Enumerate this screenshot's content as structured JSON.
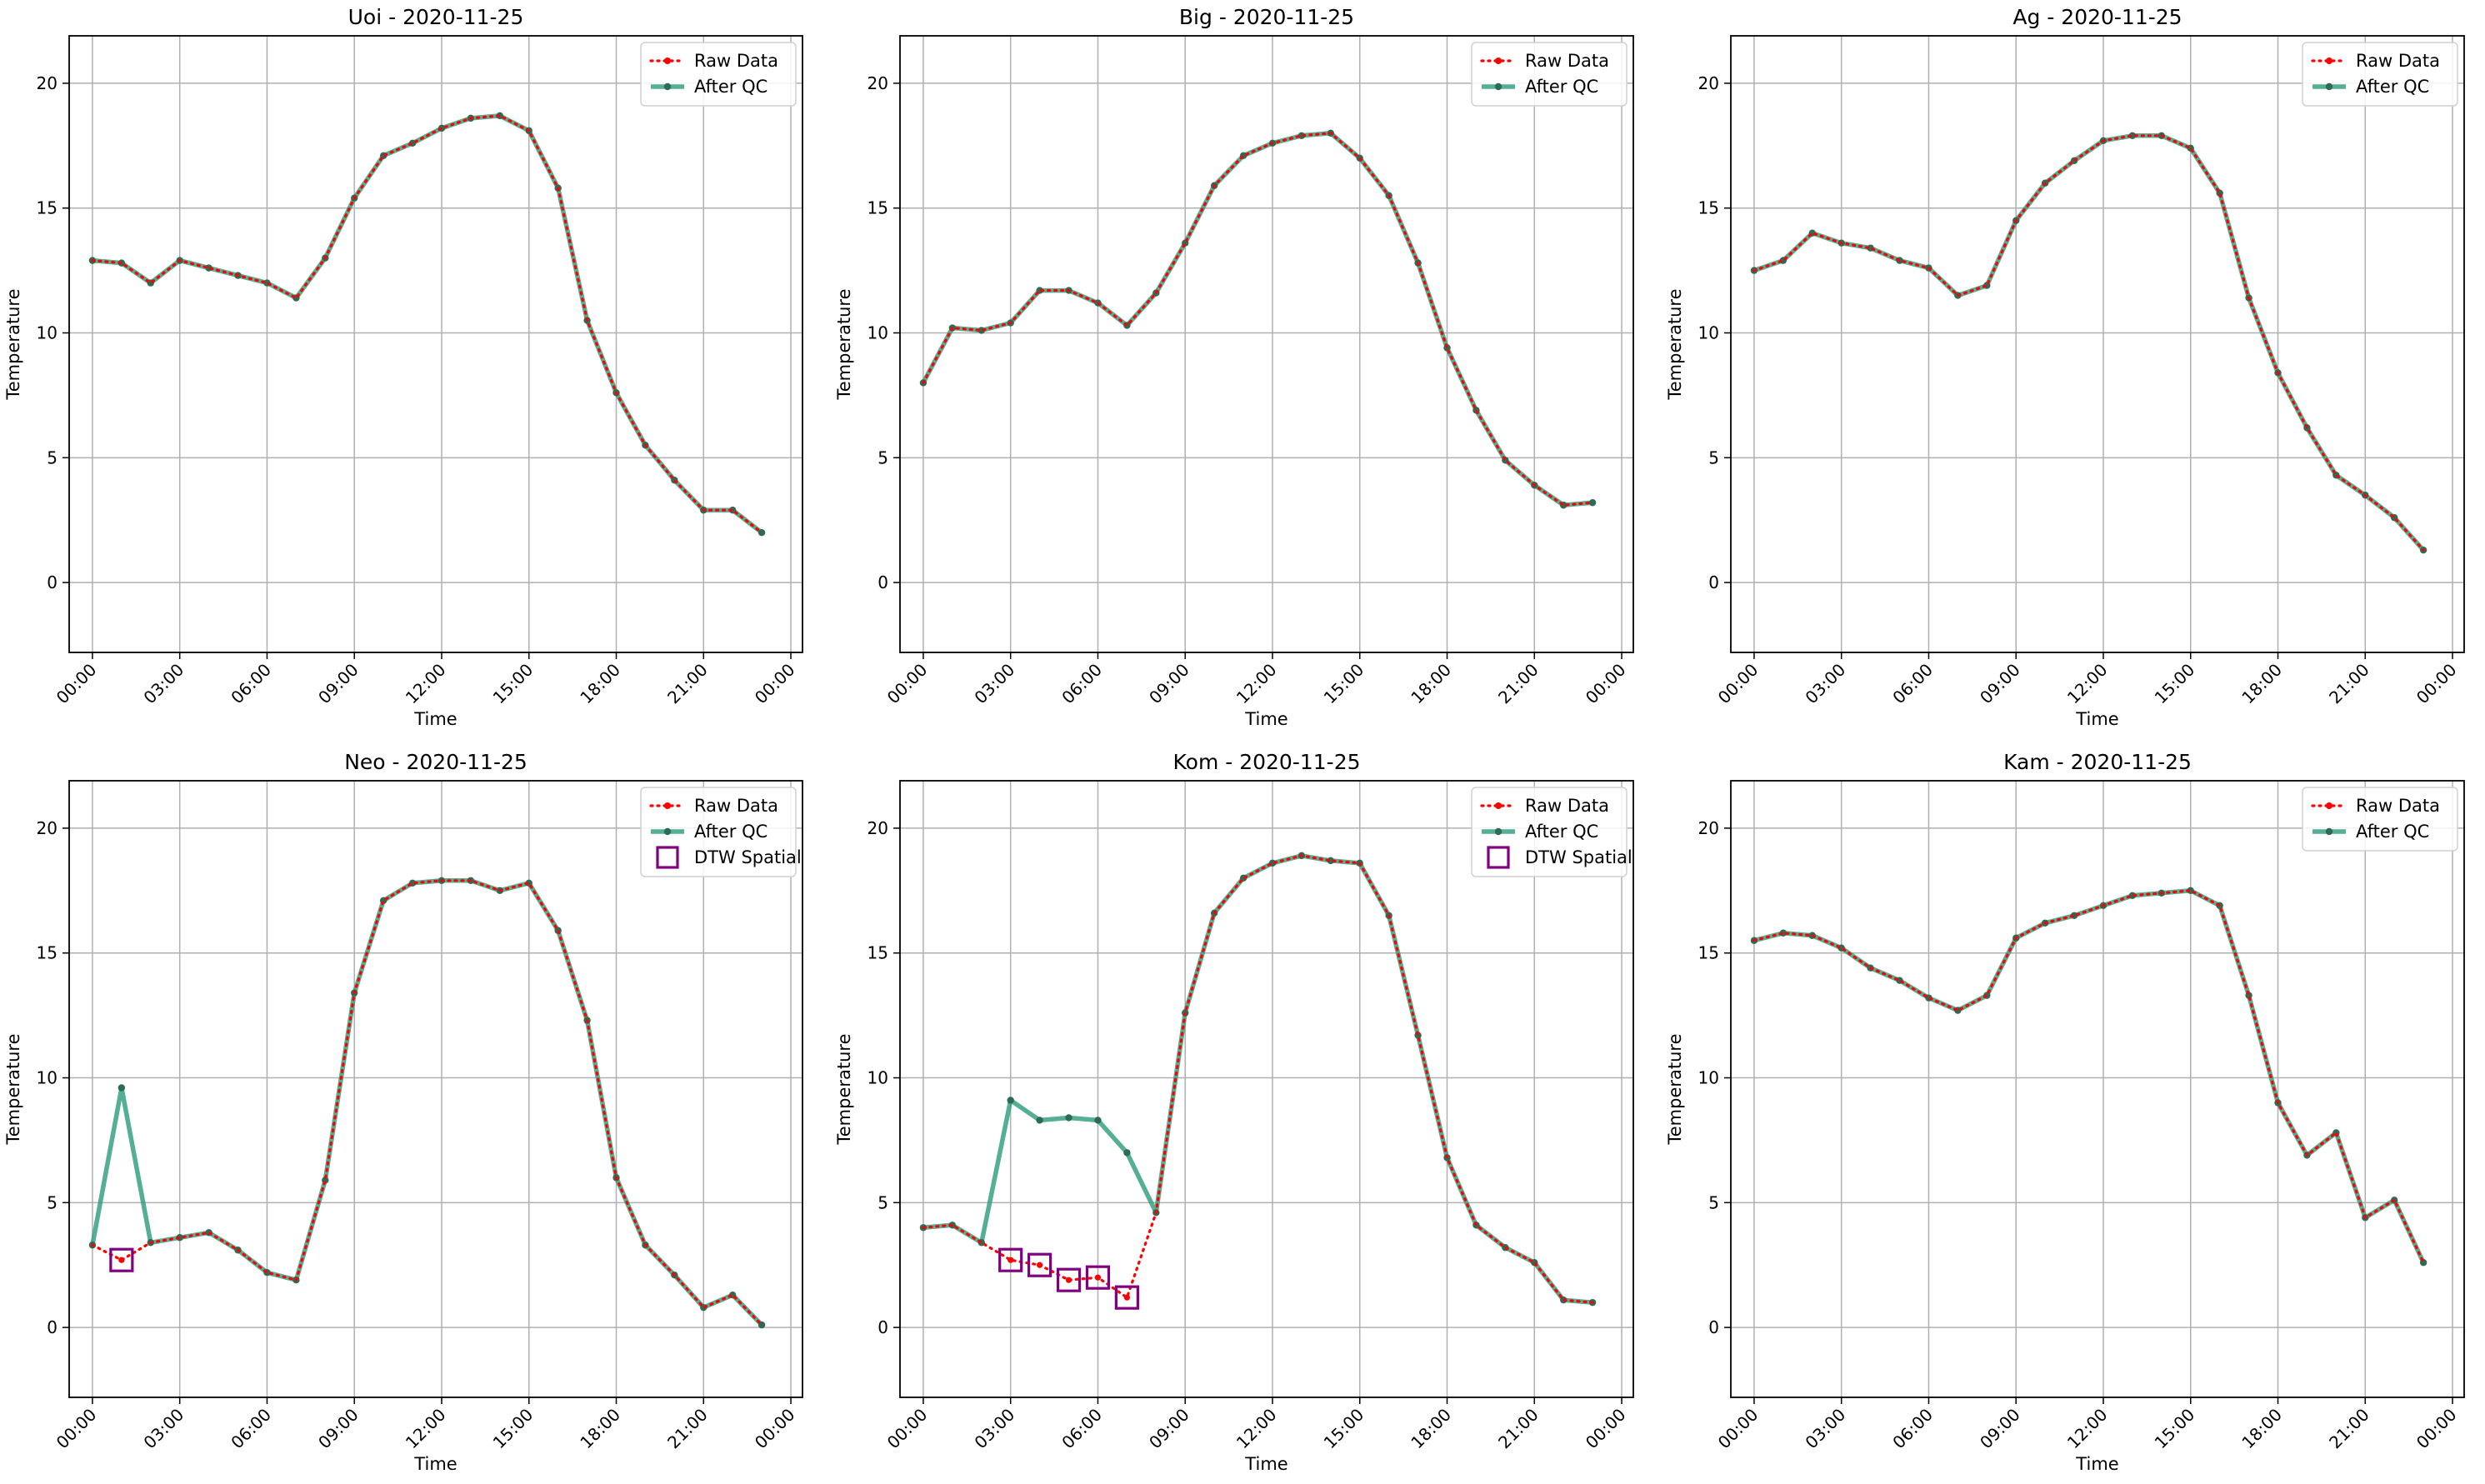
{
  "colors": {
    "raw": "#ff0000",
    "qc": "#2e9e7e",
    "qc_marker": "#2e6b57",
    "dtw": "#800080",
    "grid": "#b0b0b0",
    "axis": "#000000"
  },
  "chart_data": [
    {
      "type": "line",
      "title": "Uoi - 2020-11-25",
      "xlabel": "Time",
      "ylabel": "Temperature",
      "ylim": [
        -2.8,
        21.9
      ],
      "yticks": [
        "0",
        "5",
        "10",
        "15",
        "20"
      ],
      "xticks": [
        "00:00",
        "03:00",
        "06:00",
        "09:00",
        "12:00",
        "15:00",
        "18:00",
        "21:00",
        "00:00"
      ],
      "grid": true,
      "legend": {
        "placement": "top-right",
        "entries": [
          "Raw Data",
          "After QC"
        ]
      },
      "x": [
        "00:00",
        "01:00",
        "02:00",
        "03:00",
        "04:00",
        "05:00",
        "06:00",
        "07:00",
        "08:00",
        "09:00",
        "10:00",
        "11:00",
        "12:00",
        "13:00",
        "14:00",
        "15:00",
        "16:00",
        "17:00",
        "18:00",
        "19:00",
        "20:00",
        "21:00",
        "22:00",
        "23:00"
      ],
      "series": [
        {
          "name": "Raw Data",
          "values": [
            12.9,
            12.8,
            12.0,
            12.9,
            12.6,
            12.3,
            12.0,
            11.4,
            13.0,
            15.4,
            17.1,
            17.6,
            18.2,
            18.6,
            18.7,
            18.1,
            15.8,
            10.5,
            7.6,
            5.5,
            4.1,
            2.9,
            2.9,
            2.0
          ]
        },
        {
          "name": "After QC",
          "values": [
            12.9,
            12.8,
            12.0,
            12.9,
            12.6,
            12.3,
            12.0,
            11.4,
            13.0,
            15.4,
            17.1,
            17.6,
            18.2,
            18.6,
            18.7,
            18.1,
            15.8,
            10.5,
            7.6,
            5.5,
            4.1,
            2.9,
            2.9,
            2.0
          ]
        }
      ],
      "dtw_flags": []
    },
    {
      "type": "line",
      "title": "Big - 2020-11-25",
      "xlabel": "Time",
      "ylabel": "Temperature",
      "ylim": [
        -2.8,
        21.9
      ],
      "yticks": [
        "0",
        "5",
        "10",
        "15",
        "20"
      ],
      "xticks": [
        "00:00",
        "03:00",
        "06:00",
        "09:00",
        "12:00",
        "15:00",
        "18:00",
        "21:00",
        "00:00"
      ],
      "grid": true,
      "legend": {
        "placement": "top-right",
        "entries": [
          "Raw Data",
          "After QC"
        ]
      },
      "x": [
        "00:00",
        "01:00",
        "02:00",
        "03:00",
        "04:00",
        "05:00",
        "06:00",
        "07:00",
        "08:00",
        "09:00",
        "10:00",
        "11:00",
        "12:00",
        "13:00",
        "14:00",
        "15:00",
        "16:00",
        "17:00",
        "18:00",
        "19:00",
        "20:00",
        "21:00",
        "22:00",
        "23:00"
      ],
      "series": [
        {
          "name": "Raw Data",
          "values": [
            8.0,
            10.2,
            10.1,
            10.4,
            11.7,
            11.7,
            11.2,
            10.3,
            11.6,
            13.6,
            15.9,
            17.1,
            17.6,
            17.9,
            18.0,
            17.0,
            15.5,
            12.8,
            9.4,
            6.9,
            4.9,
            3.9,
            3.1,
            3.2
          ]
        },
        {
          "name": "After QC",
          "values": [
            8.0,
            10.2,
            10.1,
            10.4,
            11.7,
            11.7,
            11.2,
            10.3,
            11.6,
            13.6,
            15.9,
            17.1,
            17.6,
            17.9,
            18.0,
            17.0,
            15.5,
            12.8,
            9.4,
            6.9,
            4.9,
            3.9,
            3.1,
            3.2
          ]
        }
      ],
      "dtw_flags": []
    },
    {
      "type": "line",
      "title": "Ag - 2020-11-25",
      "xlabel": "Time",
      "ylabel": "Temperature",
      "ylim": [
        -2.8,
        21.9
      ],
      "yticks": [
        "0",
        "5",
        "10",
        "15",
        "20"
      ],
      "xticks": [
        "00:00",
        "03:00",
        "06:00",
        "09:00",
        "12:00",
        "15:00",
        "18:00",
        "21:00",
        "00:00"
      ],
      "grid": true,
      "legend": {
        "placement": "top-right",
        "entries": [
          "Raw Data",
          "After QC"
        ]
      },
      "x": [
        "00:00",
        "01:00",
        "02:00",
        "03:00",
        "04:00",
        "05:00",
        "06:00",
        "07:00",
        "08:00",
        "09:00",
        "10:00",
        "11:00",
        "12:00",
        "13:00",
        "14:00",
        "15:00",
        "16:00",
        "17:00",
        "18:00",
        "19:00",
        "20:00",
        "21:00",
        "22:00",
        "23:00"
      ],
      "series": [
        {
          "name": "Raw Data",
          "values": [
            12.5,
            12.9,
            14.0,
            13.6,
            13.4,
            12.9,
            12.6,
            11.5,
            11.9,
            14.5,
            16.0,
            16.9,
            17.7,
            17.9,
            17.9,
            17.4,
            15.6,
            11.4,
            8.4,
            6.2,
            4.3,
            3.5,
            2.6,
            1.3
          ]
        },
        {
          "name": "After QC",
          "values": [
            12.5,
            12.9,
            14.0,
            13.6,
            13.4,
            12.9,
            12.6,
            11.5,
            11.9,
            14.5,
            16.0,
            16.9,
            17.7,
            17.9,
            17.9,
            17.4,
            15.6,
            11.4,
            8.4,
            6.2,
            4.3,
            3.5,
            2.6,
            1.3
          ]
        }
      ],
      "dtw_flags": []
    },
    {
      "type": "line",
      "title": "Neo - 2020-11-25",
      "xlabel": "Time",
      "ylabel": "Temperature",
      "ylim": [
        -2.8,
        21.9
      ],
      "yticks": [
        "0",
        "5",
        "10",
        "15",
        "20"
      ],
      "xticks": [
        "00:00",
        "03:00",
        "06:00",
        "09:00",
        "12:00",
        "15:00",
        "18:00",
        "21:00",
        "00:00"
      ],
      "grid": true,
      "legend": {
        "placement": "top-right",
        "entries": [
          "Raw Data",
          "After QC",
          "DTW Spatial"
        ]
      },
      "x": [
        "00:00",
        "01:00",
        "02:00",
        "03:00",
        "04:00",
        "05:00",
        "06:00",
        "07:00",
        "08:00",
        "09:00",
        "10:00",
        "11:00",
        "12:00",
        "13:00",
        "14:00",
        "15:00",
        "16:00",
        "17:00",
        "18:00",
        "19:00",
        "20:00",
        "21:00",
        "22:00",
        "23:00"
      ],
      "series": [
        {
          "name": "Raw Data",
          "values": [
            3.3,
            2.7,
            3.4,
            3.6,
            3.8,
            3.1,
            2.2,
            1.9,
            5.9,
            13.4,
            17.1,
            17.8,
            17.9,
            17.9,
            17.5,
            17.8,
            15.9,
            12.3,
            6.0,
            3.3,
            2.1,
            0.8,
            1.3,
            0.1
          ]
        },
        {
          "name": "After QC",
          "values": [
            3.3,
            9.6,
            3.4,
            3.6,
            3.8,
            3.1,
            2.2,
            1.9,
            5.9,
            13.4,
            17.1,
            17.8,
            17.9,
            17.9,
            17.5,
            17.8,
            15.9,
            12.3,
            6.0,
            3.3,
            2.1,
            0.8,
            1.3,
            0.1
          ]
        }
      ],
      "dtw_flags": [
        1
      ]
    },
    {
      "type": "line",
      "title": "Kom - 2020-11-25",
      "xlabel": "Time",
      "ylabel": "Temperature",
      "ylim": [
        -2.8,
        21.9
      ],
      "yticks": [
        "0",
        "5",
        "10",
        "15",
        "20"
      ],
      "xticks": [
        "00:00",
        "03:00",
        "06:00",
        "09:00",
        "12:00",
        "15:00",
        "18:00",
        "21:00",
        "00:00"
      ],
      "grid": true,
      "legend": {
        "placement": "top-right",
        "entries": [
          "Raw Data",
          "After QC",
          "DTW Spatial"
        ]
      },
      "x": [
        "00:00",
        "01:00",
        "02:00",
        "03:00",
        "04:00",
        "05:00",
        "06:00",
        "07:00",
        "08:00",
        "09:00",
        "10:00",
        "11:00",
        "12:00",
        "13:00",
        "14:00",
        "15:00",
        "16:00",
        "17:00",
        "18:00",
        "19:00",
        "20:00",
        "21:00",
        "22:00",
        "23:00"
      ],
      "series": [
        {
          "name": "Raw Data",
          "values": [
            4.0,
            4.1,
            3.4,
            2.7,
            2.5,
            1.9,
            2.0,
            1.2,
            4.6,
            12.6,
            16.6,
            18.0,
            18.6,
            18.9,
            18.7,
            18.6,
            16.5,
            11.7,
            6.8,
            4.1,
            3.2,
            2.6,
            1.1,
            1.0
          ]
        },
        {
          "name": "After QC",
          "values": [
            4.0,
            4.1,
            3.4,
            9.1,
            8.3,
            8.4,
            8.3,
            7.0,
            4.6,
            12.6,
            16.6,
            18.0,
            18.6,
            18.9,
            18.7,
            18.6,
            16.5,
            11.7,
            6.8,
            4.1,
            3.2,
            2.6,
            1.1,
            1.0
          ]
        }
      ],
      "dtw_flags": [
        3,
        4,
        5,
        6,
        7
      ]
    },
    {
      "type": "line",
      "title": "Kam - 2020-11-25",
      "xlabel": "Time",
      "ylabel": "Temperature",
      "ylim": [
        -2.8,
        21.9
      ],
      "yticks": [
        "0",
        "5",
        "10",
        "15",
        "20"
      ],
      "xticks": [
        "00:00",
        "03:00",
        "06:00",
        "09:00",
        "12:00",
        "15:00",
        "18:00",
        "21:00",
        "00:00"
      ],
      "grid": true,
      "legend": {
        "placement": "top-right",
        "entries": [
          "Raw Data",
          "After QC"
        ]
      },
      "x": [
        "00:00",
        "01:00",
        "02:00",
        "03:00",
        "04:00",
        "05:00",
        "06:00",
        "07:00",
        "08:00",
        "09:00",
        "10:00",
        "11:00",
        "12:00",
        "13:00",
        "14:00",
        "15:00",
        "16:00",
        "17:00",
        "18:00",
        "19:00",
        "20:00",
        "21:00",
        "22:00",
        "23:00"
      ],
      "series": [
        {
          "name": "Raw Data",
          "values": [
            15.5,
            15.8,
            15.7,
            15.2,
            14.4,
            13.9,
            13.2,
            12.7,
            13.3,
            15.6,
            16.2,
            16.5,
            16.9,
            17.3,
            17.4,
            17.5,
            16.9,
            13.3,
            9.0,
            6.9,
            7.8,
            4.4,
            5.1,
            2.6
          ]
        },
        {
          "name": "After QC",
          "values": [
            15.5,
            15.8,
            15.7,
            15.2,
            14.4,
            13.9,
            13.2,
            12.7,
            13.3,
            15.6,
            16.2,
            16.5,
            16.9,
            17.3,
            17.4,
            17.5,
            16.9,
            13.3,
            9.0,
            6.9,
            7.8,
            4.4,
            5.1,
            2.6
          ]
        }
      ],
      "dtw_flags": []
    }
  ]
}
